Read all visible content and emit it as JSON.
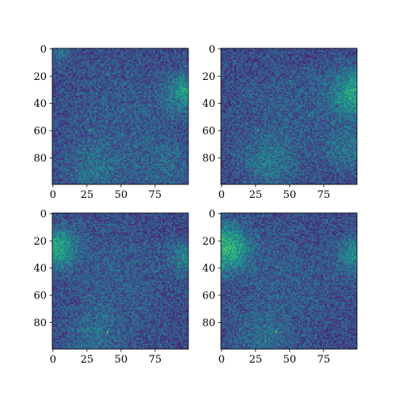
{
  "chart_data": [
    {
      "type": "heatmap",
      "colormap": "viridis",
      "grid": false,
      "xlim": [
        0,
        99
      ],
      "ylim": [
        99,
        0
      ],
      "xticks": [
        0,
        25,
        50,
        75
      ],
      "yticks": [
        0,
        20,
        40,
        60,
        80
      ],
      "xtick_labels": [
        "0",
        "25",
        "50",
        "75"
      ],
      "ytick_labels": [
        "0",
        "20",
        "40",
        "60",
        "80"
      ],
      "shape": [
        100,
        100
      ],
      "value_range": [
        0,
        1
      ],
      "base_level": 0.22,
      "hotspots": [
        {
          "x": 98,
          "y": 32,
          "radius": 10,
          "value": 0.55
        },
        {
          "x": 5,
          "y": 2,
          "radius": 6,
          "value": 0.38
        },
        {
          "x": 30,
          "y": 90,
          "radius": 14,
          "value": 0.36
        },
        {
          "x": 50,
          "y": 50,
          "radius": 30,
          "value": 0.3
        },
        {
          "x": 85,
          "y": 88,
          "radius": 16,
          "value": 0.33
        }
      ],
      "bright_pixels": [
        {
          "x": 27,
          "y": 60,
          "value": 0.75
        },
        {
          "x": 40,
          "y": 19,
          "value": 0.6
        }
      ]
    },
    {
      "type": "heatmap",
      "colormap": "viridis",
      "grid": false,
      "xlim": [
        0,
        99
      ],
      "ylim": [
        99,
        0
      ],
      "xticks": [
        0,
        25,
        50,
        75
      ],
      "yticks": [
        0,
        20,
        40,
        60,
        80
      ],
      "xtick_labels": [
        "0",
        "25",
        "50",
        "75"
      ],
      "ytick_labels": [
        "0",
        "20",
        "40",
        "60",
        "80"
      ],
      "shape": [
        100,
        100
      ],
      "value_range": [
        0,
        1
      ],
      "base_level": 0.22,
      "hotspots": [
        {
          "x": 98,
          "y": 33,
          "radius": 12,
          "value": 0.6
        },
        {
          "x": 92,
          "y": 75,
          "radius": 10,
          "value": 0.4
        },
        {
          "x": 35,
          "y": 85,
          "radius": 14,
          "value": 0.38
        },
        {
          "x": 50,
          "y": 50,
          "radius": 30,
          "value": 0.3
        }
      ],
      "bright_pixels": [
        {
          "x": 27,
          "y": 60,
          "value": 0.75
        }
      ]
    },
    {
      "type": "heatmap",
      "colormap": "viridis",
      "grid": false,
      "xlim": [
        0,
        99
      ],
      "ylim": [
        99,
        0
      ],
      "xticks": [
        0,
        25,
        50,
        75
      ],
      "yticks": [
        0,
        20,
        40,
        60,
        80
      ],
      "xtick_labels": [
        "0",
        "25",
        "50",
        "75"
      ],
      "ytick_labels": [
        "0",
        "20",
        "40",
        "60",
        "80"
      ],
      "shape": [
        100,
        100
      ],
      "value_range": [
        0,
        1
      ],
      "base_level": 0.22,
      "hotspots": [
        {
          "x": 3,
          "y": 25,
          "radius": 10,
          "value": 0.62
        },
        {
          "x": 98,
          "y": 32,
          "radius": 8,
          "value": 0.45
        },
        {
          "x": 30,
          "y": 90,
          "radius": 14,
          "value": 0.35
        },
        {
          "x": 50,
          "y": 50,
          "radius": 30,
          "value": 0.3
        }
      ],
      "bright_pixels": [
        {
          "x": 40,
          "y": 87,
          "value": 0.9
        },
        {
          "x": 27,
          "y": 60,
          "value": 0.65
        }
      ]
    },
    {
      "type": "heatmap",
      "colormap": "viridis",
      "grid": false,
      "xlim": [
        0,
        99
      ],
      "ylim": [
        99,
        0
      ],
      "xticks": [
        0,
        25,
        50,
        75
      ],
      "yticks": [
        0,
        20,
        40,
        60,
        80
      ],
      "xtick_labels": [
        "0",
        "25",
        "50",
        "75"
      ],
      "ytick_labels": [
        "0",
        "20",
        "40",
        "60",
        "80"
      ],
      "shape": [
        100,
        100
      ],
      "value_range": [
        0,
        1
      ],
      "base_level": 0.22,
      "hotspots": [
        {
          "x": 3,
          "y": 25,
          "radius": 12,
          "value": 0.68
        },
        {
          "x": 98,
          "y": 30,
          "radius": 9,
          "value": 0.48
        },
        {
          "x": 30,
          "y": 90,
          "radius": 14,
          "value": 0.35
        },
        {
          "x": 50,
          "y": 50,
          "radius": 30,
          "value": 0.3
        }
      ],
      "bright_pixels": [
        {
          "x": 40,
          "y": 87,
          "value": 0.9
        },
        {
          "x": 27,
          "y": 60,
          "value": 0.65
        }
      ]
    }
  ]
}
